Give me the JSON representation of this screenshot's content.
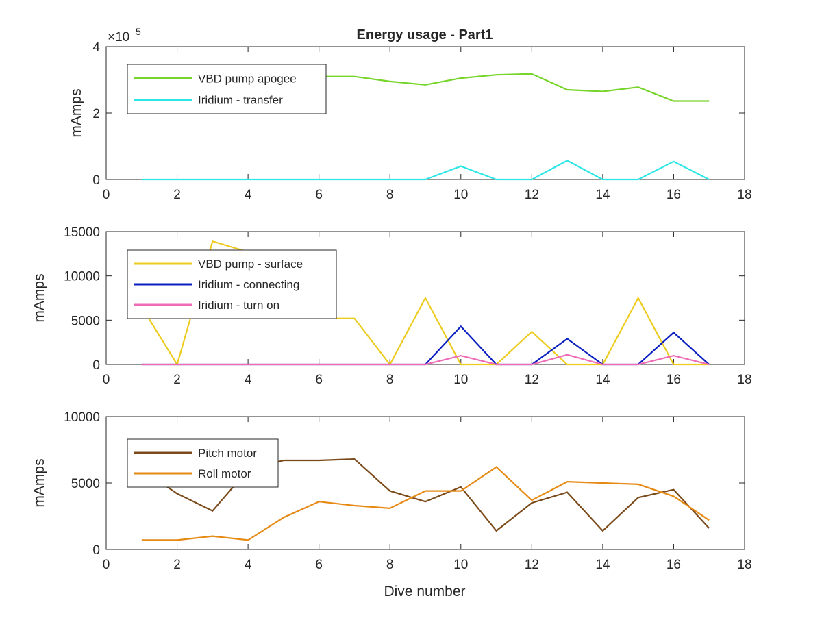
{
  "figure_title": "Energy usage - Part1",
  "x_axis_label": "Dive number",
  "chart_data": [
    {
      "type": "line",
      "title": "Energy usage - Part1",
      "xlabel": "",
      "ylabel": "mAmps",
      "xlim": [
        0,
        18
      ],
      "ylim": [
        0,
        400000
      ],
      "x_ticks": [
        0,
        2,
        4,
        6,
        8,
        10,
        12,
        14,
        16,
        18
      ],
      "y_ticks": [
        0,
        2,
        4
      ],
      "y_exponent_label": "×10",
      "y_exponent_power": "5",
      "legend_position": "top-left",
      "grid": false,
      "series": [
        {
          "name": "VBD pump apogee",
          "color": "#77d42a",
          "x": [
            1,
            2,
            3,
            4,
            5,
            6,
            7,
            8,
            9,
            10,
            11,
            12,
            13,
            14,
            15,
            16,
            17
          ],
          "y": [
            300000,
            300000,
            305000,
            305000,
            310000,
            310000,
            310000,
            295000,
            285000,
            305000,
            315000,
            318000,
            270000,
            265000,
            278000,
            236000,
            236000
          ]
        },
        {
          "name": "Iridium - transfer",
          "color": "#2ee6e6",
          "x": [
            1,
            2,
            3,
            4,
            5,
            6,
            7,
            8,
            9,
            10,
            11,
            12,
            13,
            14,
            15,
            16,
            17
          ],
          "y": [
            0,
            0,
            0,
            0,
            0,
            0,
            0,
            0,
            0,
            40000,
            0,
            0,
            57000,
            0,
            0,
            54000,
            0
          ]
        }
      ]
    },
    {
      "type": "line",
      "title": "",
      "xlabel": "",
      "ylabel": "mAmps",
      "xlim": [
        0,
        18
      ],
      "ylim": [
        0,
        15000
      ],
      "x_ticks": [
        0,
        2,
        4,
        6,
        8,
        10,
        12,
        14,
        16,
        18
      ],
      "y_ticks": [
        0,
        5000,
        10000,
        15000
      ],
      "legend_position": "top-left",
      "grid": false,
      "series": [
        {
          "name": "VBD pump - surface",
          "color": "#edcb1f",
          "x": [
            1,
            2,
            3,
            4,
            5,
            6,
            7,
            8,
            9,
            10,
            11,
            12,
            13,
            14,
            15,
            16,
            17
          ],
          "y": [
            6500,
            0,
            13900,
            12700,
            8000,
            5200,
            5200,
            0,
            7500,
            0,
            0,
            3700,
            0,
            0,
            7500,
            0,
            0
          ]
        },
        {
          "name": "Iridium - connecting",
          "color": "#0a1fbf",
          "x": [
            1,
            2,
            3,
            4,
            5,
            6,
            7,
            8,
            9,
            10,
            11,
            12,
            13,
            14,
            15,
            16,
            17
          ],
          "y": [
            0,
            0,
            0,
            0,
            0,
            0,
            0,
            0,
            0,
            4300,
            0,
            0,
            2900,
            0,
            0,
            3600,
            0
          ]
        },
        {
          "name": "Iridium - turn on",
          "color": "#ee6bb5",
          "x": [
            1,
            2,
            3,
            4,
            5,
            6,
            7,
            8,
            9,
            10,
            11,
            12,
            13,
            14,
            15,
            16,
            17
          ],
          "y": [
            0,
            0,
            0,
            0,
            0,
            0,
            0,
            0,
            0,
            1000,
            0,
            0,
            1100,
            0,
            0,
            1000,
            0
          ]
        }
      ]
    },
    {
      "type": "line",
      "title": "",
      "xlabel": "Dive number",
      "ylabel": "mAmps",
      "xlim": [
        0,
        18
      ],
      "ylim": [
        0,
        10000
      ],
      "x_ticks": [
        0,
        2,
        4,
        6,
        8,
        10,
        12,
        14,
        16,
        18
      ],
      "y_ticks": [
        0,
        5000,
        10000
      ],
      "legend_position": "top-left",
      "grid": false,
      "series": [
        {
          "name": "Pitch motor",
          "color": "#7b4a1a",
          "x": [
            1,
            2,
            3,
            4,
            5,
            6,
            7,
            8,
            9,
            10,
            11,
            12,
            13,
            14,
            15,
            16,
            17
          ],
          "y": [
            6000,
            4200,
            2900,
            6000,
            6700,
            6700,
            6800,
            4400,
            3600,
            4700,
            1400,
            3500,
            4300,
            1400,
            3900,
            4500,
            1600
          ]
        },
        {
          "name": "Roll motor",
          "color": "#e68a14",
          "x": [
            1,
            2,
            3,
            4,
            5,
            6,
            7,
            8,
            9,
            10,
            11,
            12,
            13,
            14,
            15,
            16,
            17
          ],
          "y": [
            700,
            700,
            1000,
            700,
            2400,
            3600,
            3300,
            3100,
            4400,
            4400,
            6200,
            3700,
            5100,
            5000,
            4900,
            4000,
            2200
          ]
        }
      ]
    }
  ]
}
